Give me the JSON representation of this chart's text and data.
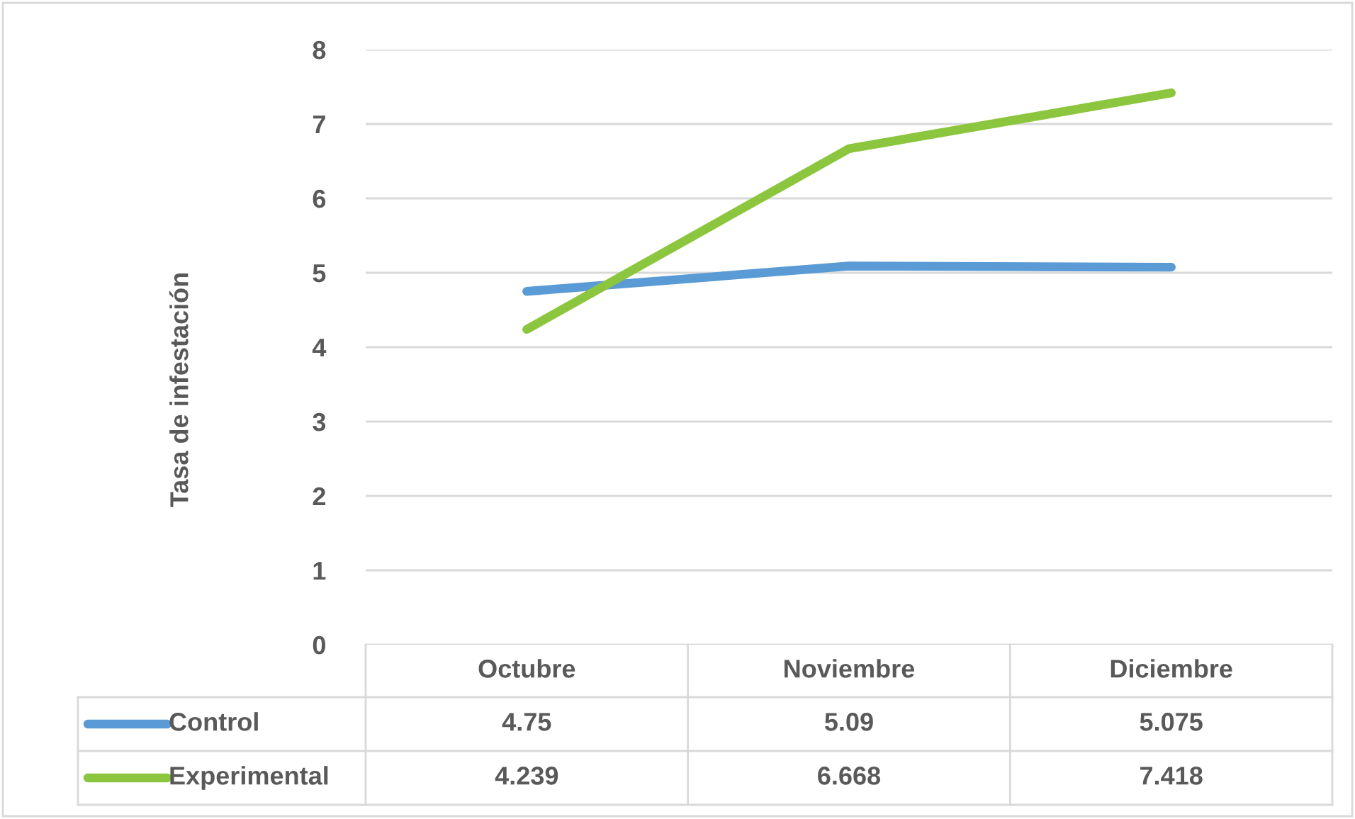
{
  "chart_data": {
    "type": "line",
    "ylabel": "Tasa de infestación",
    "categories": [
      "Octubre",
      "Noviembre",
      "Diciembre"
    ],
    "series": [
      {
        "name": "Control",
        "color": "#5b9bd5",
        "values": [
          4.75,
          5.09,
          5.075
        ]
      },
      {
        "name": "Experimental",
        "color": "#8cc63f",
        "values": [
          4.239,
          6.668,
          7.418
        ]
      }
    ],
    "ylim": [
      0,
      8
    ],
    "yticks": [
      0,
      1,
      2,
      3,
      4,
      5,
      6,
      7,
      8
    ],
    "grid": "y",
    "legend": "bottom",
    "data_labels": true,
    "marker": "none",
    "line_style": "solid"
  }
}
